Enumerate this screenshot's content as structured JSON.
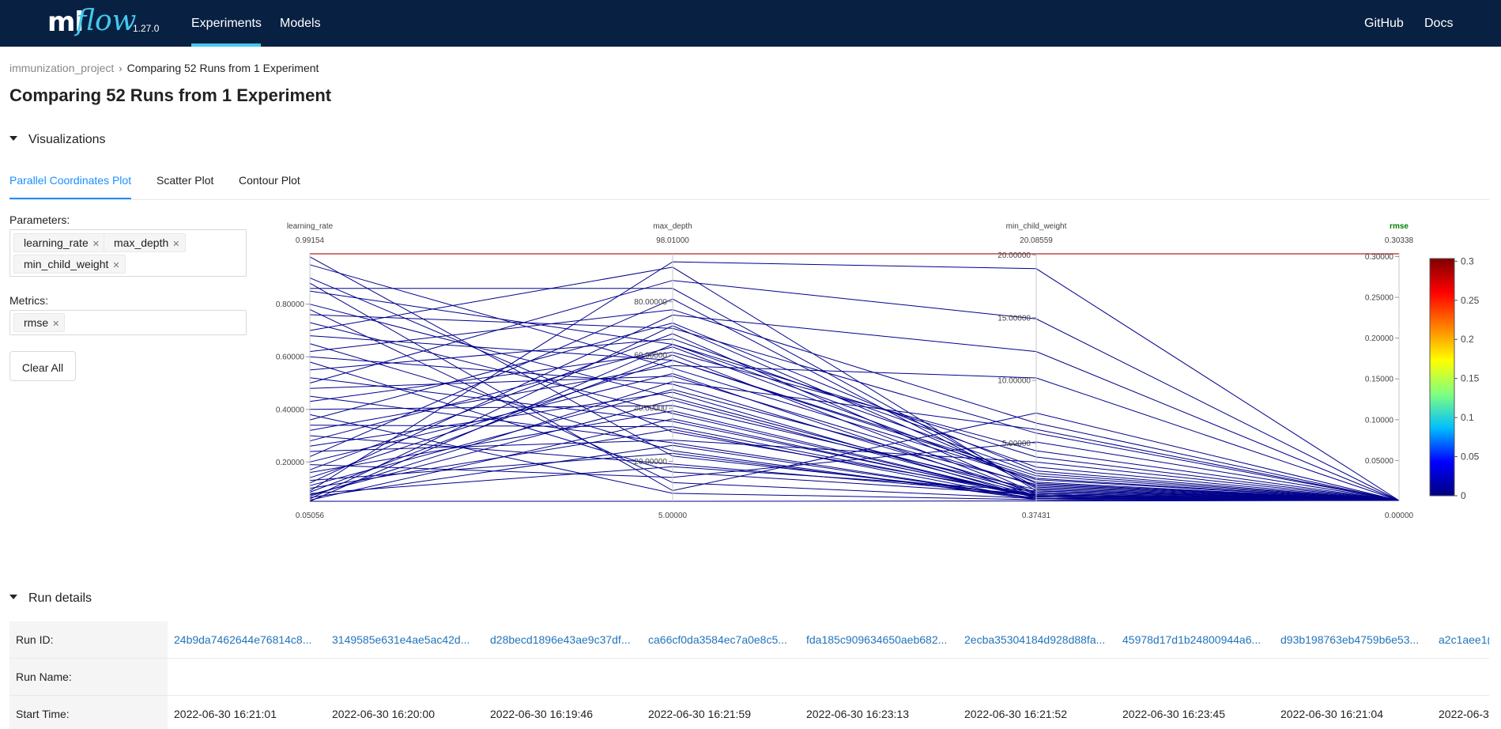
{
  "app": {
    "logo_ml": "ml",
    "logo_flow": "flow",
    "version": "1.27.0",
    "nav": {
      "experiments": "Experiments",
      "models": "Models",
      "github": "GitHub",
      "docs": "Docs"
    }
  },
  "breadcrumb": {
    "project": "immunization_project",
    "current": "Comparing 52 Runs from 1 Experiment"
  },
  "page_title": "Comparing 52 Runs from 1 Experiment",
  "visualizations": {
    "section_label": "Visualizations",
    "tabs": [
      "Parallel Coordinates Plot",
      "Scatter Plot",
      "Contour Plot"
    ],
    "active_tab": "Parallel Coordinates Plot",
    "parameters_label": "Parameters:",
    "parameters": [
      "learning_rate",
      "max_depth",
      "min_child_weight"
    ],
    "metrics_label": "Metrics:",
    "metrics": [
      "rmse"
    ],
    "clear_all": "Clear All"
  },
  "chart_data": {
    "type": "parallel-coordinates",
    "line_color": "#00008b",
    "highlight_color": "#b22222",
    "metric_color": "#008000",
    "axes": [
      {
        "name": "learning_rate",
        "max": 0.99154,
        "min": 0.05056,
        "max_label": "0.99154",
        "min_label": "0.05056",
        "ticks": [
          0.2,
          0.4,
          0.6,
          0.8
        ],
        "tick_labels": [
          "0.20000",
          "0.40000",
          "0.60000",
          "0.80000"
        ]
      },
      {
        "name": "max_depth",
        "max": 98.01,
        "min": 5.0,
        "max_label": "98.01000",
        "min_label": "5.00000",
        "ticks": [
          20,
          40,
          60,
          80
        ],
        "tick_labels": [
          "20.00000",
          "40.00000",
          "60.00000",
          "80.00000"
        ]
      },
      {
        "name": "min_child_weight",
        "max": 20.08559,
        "min": 0.37431,
        "max_label": "20.08559",
        "min_label": "0.37431",
        "ticks": [
          5,
          10,
          15,
          20
        ],
        "tick_labels": [
          "5.00000",
          "10.00000",
          "15.00000",
          "20.00000"
        ]
      },
      {
        "name": "rmse",
        "max": 0.30338,
        "min": 0.0,
        "max_label": "0.30338",
        "min_label": "0.00000",
        "ticks": [
          0.05,
          0.1,
          0.15,
          0.2,
          0.25,
          0.3
        ],
        "tick_labels": [
          "0.05000",
          "0.10000",
          "0.15000",
          "0.20000",
          "0.25000",
          "0.30000"
        ]
      }
    ],
    "colorbar": {
      "ticks": [
        "0",
        "0.05",
        "0.1",
        "0.15",
        "0.2",
        "0.25",
        "0.3"
      ],
      "colors": [
        "#00007f",
        "#0000ff",
        "#00bfff",
        "#7fff7f",
        "#ffff00",
        "#ff7f00",
        "#ff0000",
        "#7f0000"
      ]
    },
    "highlight_run": [
      0.99154,
      98.01,
      20.08559,
      0.30338
    ],
    "runs": [
      [
        0.98,
        22,
        0.8,
        0.001
      ],
      [
        0.95,
        55,
        2.1,
        0.001
      ],
      [
        0.9,
        31,
        0.9,
        0.001
      ],
      [
        0.86,
        85,
        1.5,
        0.001
      ],
      [
        0.85,
        64,
        3.9,
        0.001
      ],
      [
        0.8,
        44,
        1.0,
        0.001
      ],
      [
        0.78,
        12,
        0.6,
        0.001
      ],
      [
        0.76,
        70,
        5.8,
        0.001
      ],
      [
        0.73,
        38,
        0.7,
        0.001
      ],
      [
        0.7,
        93,
        1.2,
        0.001
      ],
      [
        0.68,
        58,
        2.4,
        0.001
      ],
      [
        0.65,
        24,
        0.5,
        0.001
      ],
      [
        0.62,
        77,
        6.6,
        0.001
      ],
      [
        0.6,
        49,
        1.1,
        0.001
      ],
      [
        0.58,
        16,
        0.9,
        0.001
      ],
      [
        0.55,
        66,
        3.1,
        0.001
      ],
      [
        0.52,
        35,
        0.8,
        0.001
      ],
      [
        0.5,
        88,
        14.9,
        0.001
      ],
      [
        0.48,
        52,
        1.6,
        0.001
      ],
      [
        0.45,
        27,
        0.6,
        0.001
      ],
      [
        0.43,
        61,
        4.4,
        0.001
      ],
      [
        0.4,
        41,
        1.3,
        0.001
      ],
      [
        0.38,
        8,
        0.5,
        0.001
      ],
      [
        0.36,
        72,
        2.8,
        0.001
      ],
      [
        0.34,
        33,
        0.7,
        0.001
      ],
      [
        0.32,
        56,
        10.2,
        0.001
      ],
      [
        0.3,
        19,
        0.9,
        0.001
      ],
      [
        0.28,
        63,
        1.9,
        0.001
      ],
      [
        0.26,
        46,
        0.6,
        0.001
      ],
      [
        0.24,
        28,
        3.5,
        0.001
      ],
      [
        0.22,
        81,
        1.4,
        0.001
      ],
      [
        0.2,
        53,
        0.8,
        0.001
      ],
      [
        0.19,
        14,
        5.1,
        0.001
      ],
      [
        0.17,
        68,
        1.0,
        0.001
      ],
      [
        0.16,
        39,
        0.7,
        0.001
      ],
      [
        0.14,
        58,
        2.2,
        0.001
      ],
      [
        0.13,
        23,
        0.6,
        0.001
      ],
      [
        0.12,
        75,
        12.3,
        0.001
      ],
      [
        0.11,
        47,
        1.7,
        0.001
      ],
      [
        0.1,
        32,
        0.5,
        0.001
      ],
      [
        0.09,
        95,
        18.9,
        0.001
      ],
      [
        0.085,
        60,
        0.9,
        0.001
      ],
      [
        0.08,
        18,
        1.2,
        0.001
      ],
      [
        0.075,
        43,
        0.8,
        0.001
      ],
      [
        0.07,
        50,
        6.1,
        0.001
      ],
      [
        0.065,
        26,
        0.6,
        0.001
      ],
      [
        0.06,
        71,
        1.8,
        0.001
      ],
      [
        0.055,
        36,
        0.7,
        0.001
      ],
      [
        0.05056,
        64,
        2.6,
        0.001
      ],
      [
        0.05056,
        5,
        0.4,
        0.001
      ],
      [
        0.88,
        9,
        7.4,
        0.001
      ]
    ]
  },
  "run_details": {
    "section_label": "Run details",
    "row_labels": {
      "run_id": "Run ID:",
      "run_name": "Run Name:",
      "start_time": "Start Time:"
    },
    "run_ids": [
      "24b9da7462644e76814c8...",
      "3149585e631e4ae5ac42d...",
      "d28becd1896e43ae9c37df...",
      "ca66cf0da3584ec7a0e8c5...",
      "fda185c909634650aeb682...",
      "2ecba35304184d928d88fa...",
      "45978d17d1b24800944a6...",
      "d93b198763eb4759b6e53...",
      "a2c1aee1("
    ],
    "start_times": [
      "2022-06-30 16:21:01",
      "2022-06-30 16:20:00",
      "2022-06-30 16:19:46",
      "2022-06-30 16:21:59",
      "2022-06-30 16:23:13",
      "2022-06-30 16:21:52",
      "2022-06-30 16:23:45",
      "2022-06-30 16:21:04",
      "2022-06-3("
    ]
  }
}
